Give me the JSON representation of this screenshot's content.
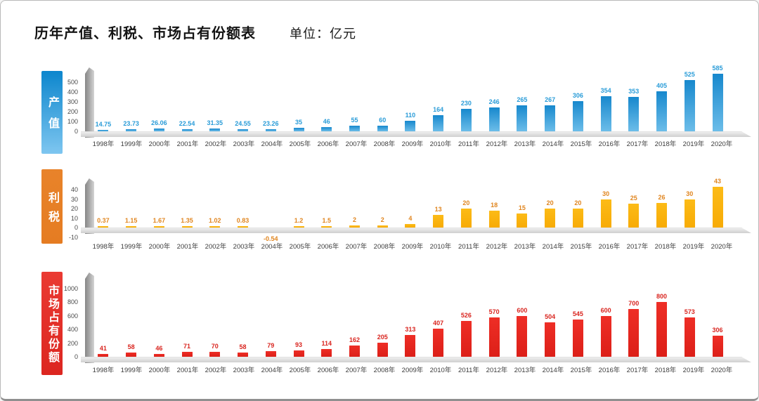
{
  "title": "历年产值、利税、市场占有份额表",
  "unit_label": "单位：亿元",
  "chart_data": [
    {
      "type": "bar",
      "name": "产值",
      "title": "产值",
      "categories": [
        "1998年",
        "1999年",
        "2000年",
        "2001年",
        "2002年",
        "2003年",
        "2004年",
        "2005年",
        "2006年",
        "2007年",
        "2008年",
        "2009年",
        "2010年",
        "2011年",
        "2012年",
        "2013年",
        "2014年",
        "2015年",
        "2016年",
        "2017年",
        "2018年",
        "2019年",
        "2020年"
      ],
      "values": [
        14.75,
        23.73,
        26.06,
        22.54,
        31.35,
        24.55,
        23.26,
        35,
        46,
        55,
        60,
        110,
        164,
        230,
        246,
        265,
        267,
        306,
        354,
        353,
        405,
        525,
        585
      ],
      "ylim": [
        0,
        500
      ],
      "yticks": [
        0,
        100,
        200,
        300,
        400,
        500
      ],
      "grid": false,
      "legend": "none",
      "colors": {
        "box_top": "#0c86cd",
        "box_bottom": "#7ec6f0",
        "bar_top": "#1788cd",
        "bar_bottom": "#6cbde9",
        "value_label": "#2a9cd8"
      }
    },
    {
      "type": "bar",
      "name": "利税",
      "title": "利税",
      "categories": [
        "1998年",
        "1999年",
        "2000年",
        "2001年",
        "2002年",
        "2003年",
        "2004年",
        "2005年",
        "2006年",
        "2007年",
        "2008年",
        "2009年",
        "2010年",
        "2011年",
        "2012年",
        "2013年",
        "2014年",
        "2015年",
        "2016年",
        "2017年",
        "2018年",
        "2019年",
        "2020年"
      ],
      "values": [
        0.37,
        1.15,
        1.67,
        1.35,
        1.02,
        0.83,
        -0.54,
        1.2,
        1.5,
        2,
        2,
        4,
        13,
        20,
        18,
        15,
        20,
        20,
        30,
        25,
        26,
        30,
        43
      ],
      "ylim": [
        -10,
        40
      ],
      "yticks": [
        -10,
        0,
        10,
        20,
        30,
        40
      ],
      "grid": false,
      "legend": "none",
      "colors": {
        "box_top": "#e8832a",
        "box_bottom": "#e57c22",
        "bar_top": "#fcbb17",
        "bar_bottom": "#f7ab06",
        "value_label": "#e0851f"
      }
    },
    {
      "type": "bar",
      "name": "市场占有份额",
      "title": "市场占有份额",
      "categories": [
        "1998年",
        "1999年",
        "2000年",
        "2001年",
        "2002年",
        "2003年",
        "2004年",
        "2005年",
        "2006年",
        "2007年",
        "2008年",
        "2009年",
        "2010年",
        "2011年",
        "2012年",
        "2013年",
        "2014年",
        "2015年",
        "2016年",
        "2017年",
        "2018年",
        "2019年",
        "2020年"
      ],
      "values": [
        41,
        58,
        46,
        71,
        70,
        58,
        79,
        93,
        114,
        162,
        205,
        313,
        407,
        526,
        570,
        600,
        504,
        545,
        600,
        700,
        800,
        573,
        306
      ],
      "ylim": [
        0,
        1000
      ],
      "yticks": [
        0,
        200,
        400,
        600,
        800,
        1000
      ],
      "grid": false,
      "legend": "none",
      "colors": {
        "box_top": "#ea3a32",
        "box_bottom": "#dc2620",
        "bar_top": "#ee2e26",
        "bar_bottom": "#dc1f18",
        "value_label": "#d9251f"
      }
    }
  ]
}
